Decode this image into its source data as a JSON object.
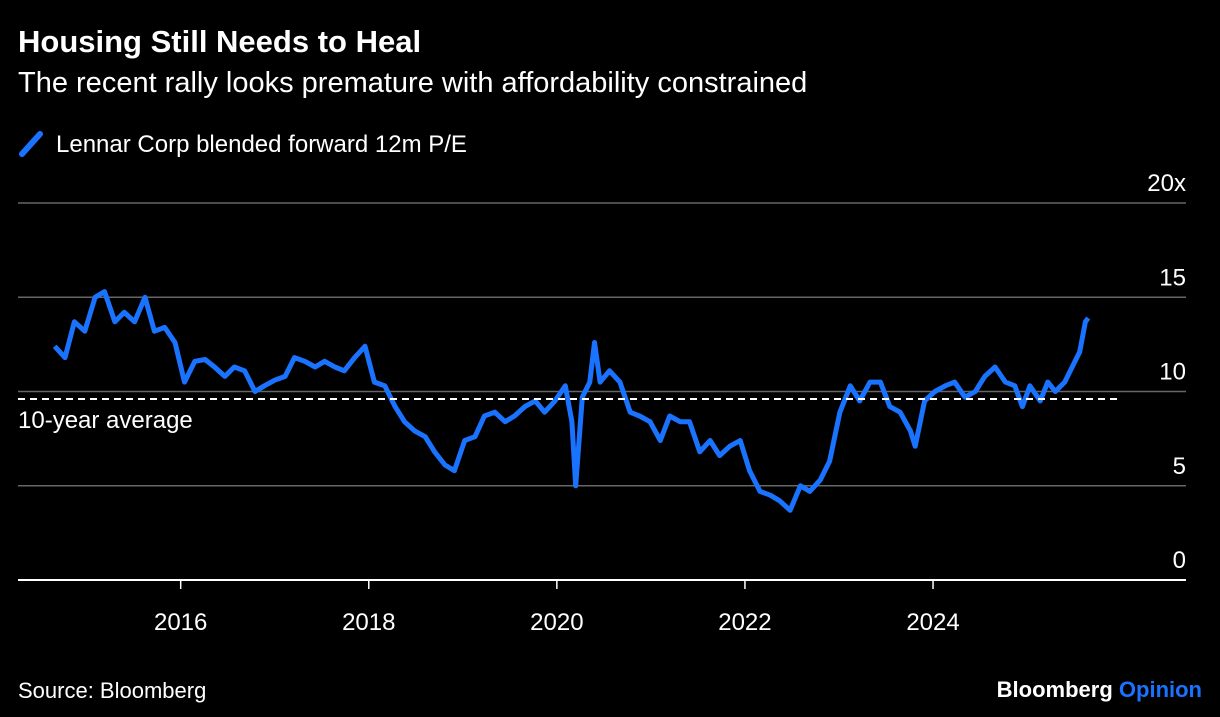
{
  "chart_data": {
    "type": "line",
    "title": "Housing Still Needs to Heal",
    "subtitle": "The recent rally looks premature with affordability constrained",
    "source": "Source: Bloomberg",
    "logo": [
      "Bloomberg",
      "Opinion"
    ],
    "average": {
      "value": 9.6,
      "label": "10-year average"
    },
    "xlim": [
      2014.27,
      2026.69
    ],
    "xticks": [
      2016,
      2018,
      2020,
      2022,
      2024
    ],
    "ylim": [
      0,
      20
    ],
    "yticks": [
      0,
      5,
      10,
      15,
      {
        "value": 20,
        "label": "20x"
      }
    ],
    "grid": true,
    "x": [
      2014.66,
      2014.77,
      2014.87,
      2014.98,
      2015.09,
      2015.19,
      2015.3,
      2015.4,
      2015.51,
      2015.62,
      2015.72,
      2015.83,
      2015.94,
      2016.04,
      2016.15,
      2016.26,
      2016.36,
      2016.47,
      2016.57,
      2016.68,
      2016.79,
      2016.89,
      2017.0,
      2017.11,
      2017.21,
      2017.32,
      2017.43,
      2017.53,
      2017.64,
      2017.74,
      2017.85,
      2017.96,
      2018.06,
      2018.17,
      2018.28,
      2018.38,
      2018.49,
      2018.6,
      2018.7,
      2018.81,
      2018.91,
      2019.02,
      2019.13,
      2019.23,
      2019.34,
      2019.45,
      2019.55,
      2019.66,
      2019.77,
      2019.87,
      2019.98,
      2020.09,
      2020.16,
      2020.2,
      2020.27,
      2020.35,
      2020.4,
      2020.46,
      2020.56,
      2020.67,
      2020.78,
      2020.88,
      2020.99,
      2021.1,
      2021.2,
      2021.31,
      2021.41,
      2021.52,
      2021.63,
      2021.73,
      2021.84,
      2021.95,
      2022.05,
      2022.16,
      2022.27,
      2022.37,
      2022.48,
      2022.59,
      2022.69,
      2022.8,
      2022.9,
      2023.01,
      2023.12,
      2023.22,
      2023.33,
      2023.44,
      2023.54,
      2023.65,
      2023.76,
      2023.81,
      2023.91,
      2024.02,
      2024.13,
      2024.23,
      2024.34,
      2024.45,
      2024.55,
      2024.66,
      2024.77,
      2024.87,
      2024.95,
      2025.03,
      2025.14,
      2025.22,
      2025.3,
      2025.4,
      2025.51,
      2025.56,
      2025.62,
      2025.65
    ],
    "series": [
      {
        "name": "Lennar Corp blended forward 12m P/E",
        "color": "#1a73ff",
        "values": [
          12.4,
          11.8,
          13.7,
          13.2,
          15.0,
          15.3,
          13.7,
          14.2,
          13.7,
          15.0,
          13.2,
          13.4,
          12.6,
          10.5,
          11.6,
          11.7,
          11.3,
          10.8,
          11.3,
          11.1,
          10.0,
          10.3,
          10.6,
          10.8,
          11.8,
          11.6,
          11.3,
          11.6,
          11.3,
          11.1,
          11.8,
          12.4,
          10.5,
          10.3,
          9.2,
          8.4,
          7.9,
          7.6,
          6.8,
          6.1,
          5.8,
          7.4,
          7.6,
          8.7,
          8.9,
          8.4,
          8.7,
          9.2,
          9.5,
          8.9,
          9.5,
          10.3,
          8.4,
          5.0,
          9.7,
          10.5,
          12.6,
          10.5,
          11.1,
          10.5,
          8.9,
          8.7,
          8.4,
          7.4,
          8.7,
          8.4,
          8.4,
          6.8,
          7.4,
          6.6,
          7.1,
          7.4,
          5.8,
          4.7,
          4.5,
          4.2,
          3.7,
          5.0,
          4.7,
          5.3,
          6.3,
          8.9,
          10.3,
          9.5,
          10.5,
          10.5,
          9.2,
          8.9,
          7.9,
          7.1,
          9.5,
          10.0,
          10.3,
          10.5,
          9.7,
          10.0,
          10.8,
          11.3,
          10.5,
          10.3,
          9.2,
          10.3,
          9.5,
          10.5,
          10.0,
          10.5,
          11.6,
          12.1,
          13.7,
          13.9
        ]
      }
    ]
  }
}
